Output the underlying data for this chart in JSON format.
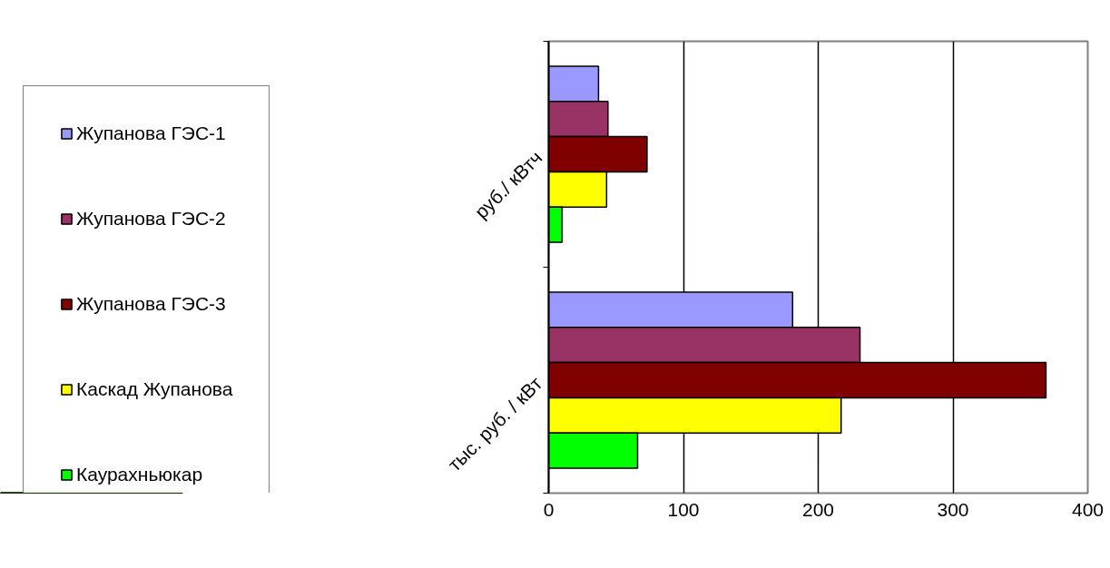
{
  "chart_data": {
    "type": "bar",
    "orientation": "horizontal",
    "categories": [
      "руб./ кВтч",
      "тыс. руб. / кВт"
    ],
    "series": [
      {
        "name": "Жупанова ГЭС-1",
        "color": "#9999ff",
        "values": [
          37,
          181
        ]
      },
      {
        "name": "Жупанова ГЭС-2",
        "color": "#993366",
        "values": [
          44,
          231
        ]
      },
      {
        "name": "Жупанова ГЭС-3",
        "color": "#800000",
        "values": [
          73,
          369
        ]
      },
      {
        "name": "Каскад Жупанова",
        "color": "#ffff00",
        "values": [
          43,
          217
        ]
      },
      {
        "name": "Каурахньюкар",
        "color": "#00ff00",
        "values": [
          10,
          66
        ]
      }
    ],
    "xlim": [
      0,
      400
    ],
    "xticks": [
      0,
      100,
      200,
      300,
      400
    ],
    "grid": "x",
    "legend": "left"
  }
}
